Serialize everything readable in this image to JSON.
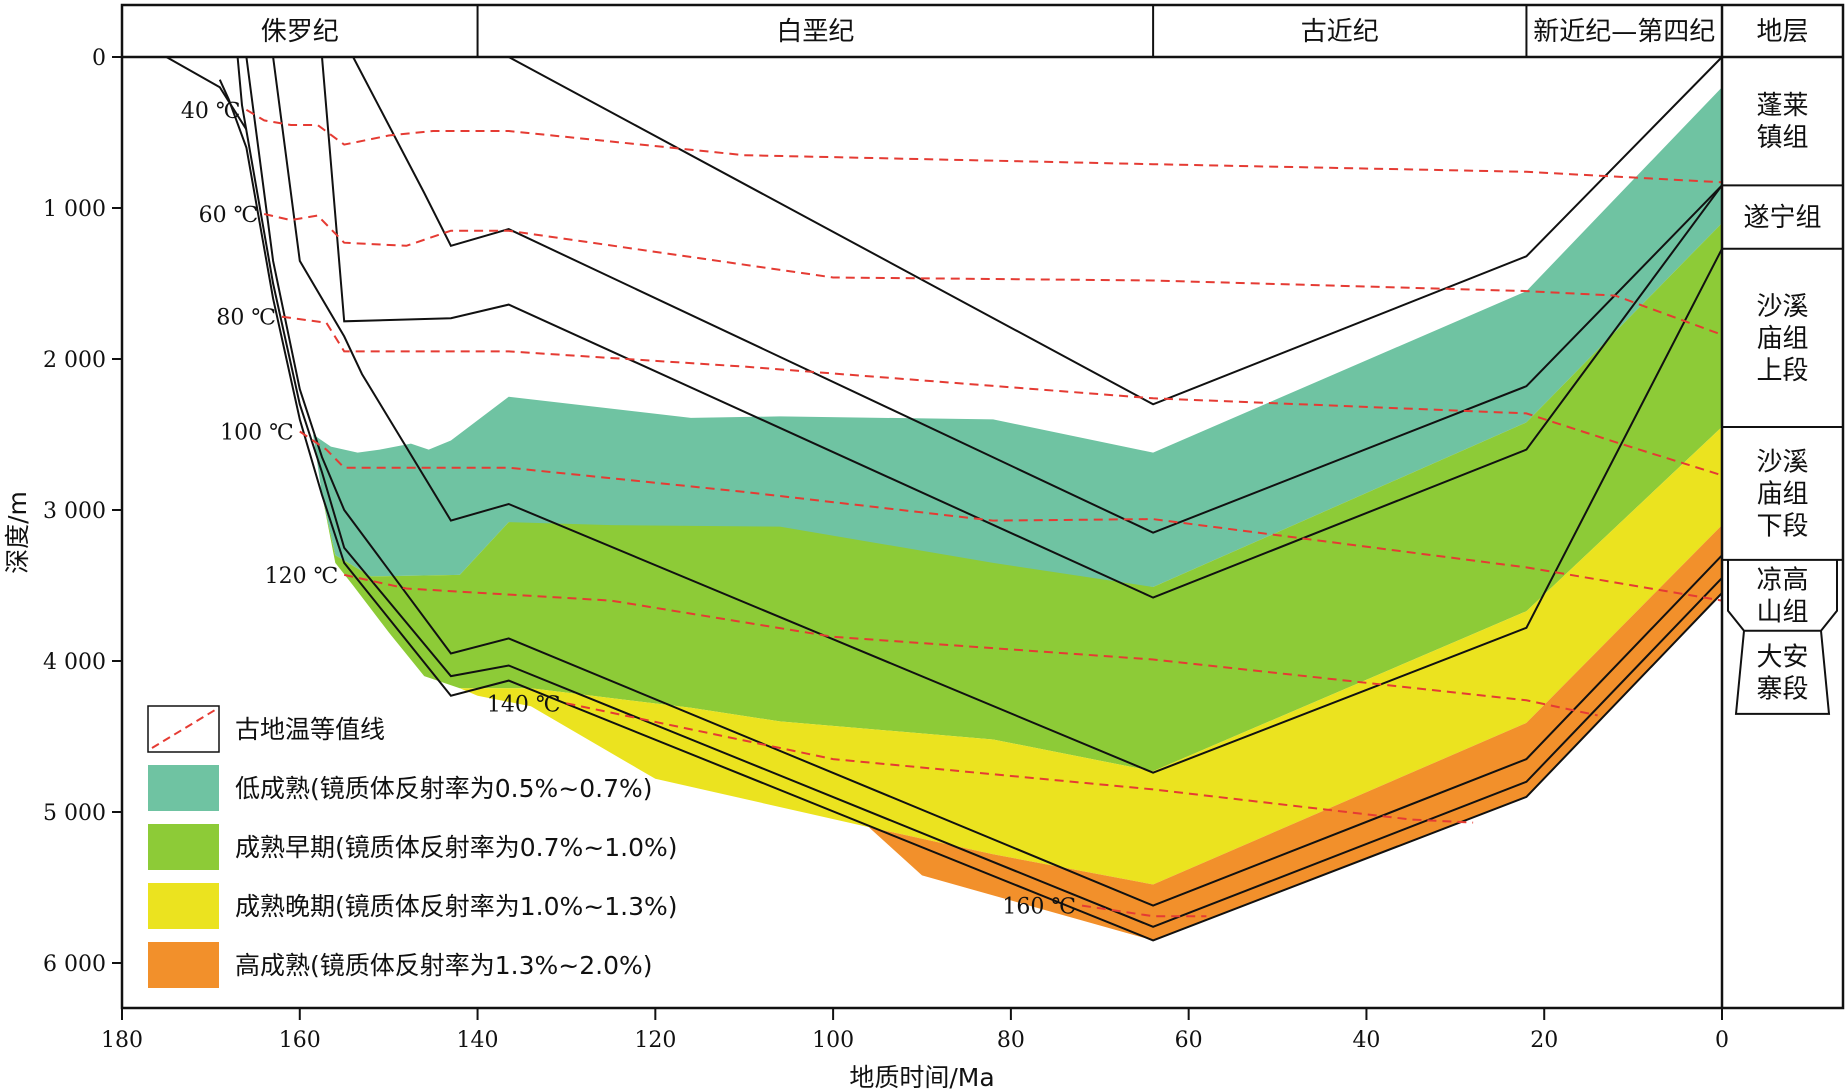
{
  "chart_data": {
    "type": "area",
    "xlabel": "地质时间/Ma",
    "ylabel": "深度/m",
    "xlim": [
      180,
      0
    ],
    "ylim": [
      0,
      6300
    ],
    "xticks": [
      {
        "value": 180,
        "label": "180"
      },
      {
        "value": 160,
        "label": "160"
      },
      {
        "value": 140,
        "label": "140"
      },
      {
        "value": 120,
        "label": "120"
      },
      {
        "value": 100,
        "label": "100"
      },
      {
        "value": 80,
        "label": "80"
      },
      {
        "value": 60,
        "label": "60"
      },
      {
        "value": 40,
        "label": "40"
      },
      {
        "value": 20,
        "label": "20"
      },
      {
        "value": 0,
        "label": "0"
      }
    ],
    "yticks": [
      {
        "value": 0,
        "label": "0"
      },
      {
        "value": 1000,
        "label": "1 000"
      },
      {
        "value": 2000,
        "label": "2 000"
      },
      {
        "value": 3000,
        "label": "3 000"
      },
      {
        "value": 4000,
        "label": "4 000"
      },
      {
        "value": 5000,
        "label": "5 000"
      },
      {
        "value": 6000,
        "label": "6 000"
      }
    ],
    "periods": [
      {
        "label": "侏罗纪",
        "from": 180,
        "to": 140
      },
      {
        "label": "白垩纪",
        "from": 140,
        "to": 64
      },
      {
        "label": "古近纪",
        "from": 64,
        "to": 22
      },
      {
        "label": "新近纪—第四纪",
        "from": 22,
        "to": 0
      }
    ],
    "strata_header": "地层",
    "strata": [
      {
        "label": "蓬莱\n镇组",
        "top": 0,
        "bottom": 850
      },
      {
        "label": "遂宁组",
        "top": 850,
        "bottom": 1270
      },
      {
        "label": "沙溪\n庙组\n上段",
        "top": 1270,
        "bottom": 2450
      },
      {
        "label": "沙溪\n庙组\n下段",
        "top": 2450,
        "bottom": 3330
      },
      {
        "label": "凉高\n山组",
        "top": 3330,
        "bottom": 3800
      },
      {
        "label": "大安\n寨段",
        "top": 3800,
        "bottom": 4350
      }
    ],
    "zones": [
      {
        "name": "低成熟(镜质体反射率为0.5%~0.7%)",
        "color": "#6fc3a2",
        "polygon": [
          [
            158.5,
            2500
          ],
          [
            156.5,
            2580
          ],
          [
            153.5,
            2620
          ],
          [
            151,
            2600
          ],
          [
            147.5,
            2560
          ],
          [
            145.5,
            2600
          ],
          [
            143,
            2540
          ],
          [
            136.5,
            2250
          ],
          [
            116,
            2390
          ],
          [
            106,
            2380
          ],
          [
            82,
            2400
          ],
          [
            64,
            2620
          ],
          [
            22,
            1550
          ],
          [
            0,
            200
          ],
          [
            0,
            1100
          ],
          [
            22,
            2420
          ],
          [
            64,
            3510
          ],
          [
            82,
            3440
          ],
          [
            106,
            3400
          ],
          [
            116,
            3380
          ],
          [
            125,
            3360
          ],
          [
            136.5,
            3080
          ],
          [
            142,
            3430
          ],
          [
            152,
            3440
          ],
          [
            156,
            3300
          ],
          [
            157.5,
            2900
          ]
        ]
      },
      {
        "name": "成熟早期(镜质体反射率为0.7%~1.0%)",
        "color": "#8dcb37",
        "polygon": [
          [
            157.5,
            2900
          ],
          [
            156,
            3300
          ],
          [
            152,
            3440
          ],
          [
            142,
            3430
          ],
          [
            136.5,
            3080
          ],
          [
            125,
            3100
          ],
          [
            106,
            3110
          ],
          [
            82,
            3350
          ],
          [
            64,
            3510
          ],
          [
            22,
            2420
          ],
          [
            0,
            1100
          ],
          [
            0,
            2450
          ],
          [
            22,
            3670
          ],
          [
            64,
            4730
          ],
          [
            82,
            4520
          ],
          [
            106,
            4400
          ],
          [
            116,
            4310
          ],
          [
            134,
            4180
          ],
          [
            142,
            4180
          ],
          [
            146,
            4100
          ],
          [
            150,
            3810
          ],
          [
            154,
            3500
          ],
          [
            156,
            3350
          ]
        ]
      },
      {
        "name": "成熟晚期(镜质体反射率为1.0%~1.3%)",
        "color": "#ebe31f",
        "polygon": [
          [
            142,
            4180
          ],
          [
            134,
            4180
          ],
          [
            116,
            4310
          ],
          [
            106,
            4400
          ],
          [
            82,
            4520
          ],
          [
            64,
            4730
          ],
          [
            22,
            3670
          ],
          [
            0,
            2450
          ],
          [
            0,
            3100
          ],
          [
            22,
            4410
          ],
          [
            64,
            5480
          ],
          [
            82,
            5280
          ],
          [
            96,
            5100
          ],
          [
            120,
            4780
          ],
          [
            134,
            4300
          ],
          [
            140,
            4230
          ]
        ]
      },
      {
        "name": "高成熟(镜质体反射率为1.3%~2.0%)",
        "color": "#f2902b",
        "polygon": [
          [
            96,
            5100
          ],
          [
            82,
            5280
          ],
          [
            64,
            5480
          ],
          [
            22,
            4410
          ],
          [
            0,
            3100
          ],
          [
            0,
            3550
          ],
          [
            22,
            4900
          ],
          [
            64,
            5850
          ],
          [
            90,
            5420
          ]
        ]
      }
    ],
    "burial_lines": [
      [
        [
          169,
          150
        ],
        [
          168,
          280
        ],
        [
          166,
          600
        ],
        [
          163,
          1600
        ],
        [
          160,
          2400
        ],
        [
          157.5,
          2900
        ],
        [
          155,
          3350
        ],
        [
          143,
          4230
        ],
        [
          136.5,
          4130
        ],
        [
          64,
          5850
        ],
        [
          22,
          4900
        ],
        [
          0,
          3550
        ]
      ],
      [
        [
          167,
          0
        ],
        [
          166.5,
          320
        ],
        [
          163,
          1500
        ],
        [
          160,
          2300
        ],
        [
          157.5,
          2750
        ],
        [
          155,
          3250
        ],
        [
          143,
          4100
        ],
        [
          136.5,
          4030
        ],
        [
          64,
          5760
        ],
        [
          22,
          4800
        ],
        [
          0,
          3450
        ]
      ],
      [
        [
          166,
          0
        ],
        [
          163,
          1350
        ],
        [
          160,
          2200
        ],
        [
          157.5,
          2650
        ],
        [
          155,
          3000
        ],
        [
          143,
          3950
        ],
        [
          136.5,
          3850
        ],
        [
          64,
          5620
        ],
        [
          22,
          4650
        ],
        [
          0,
          3300
        ]
      ],
      [
        [
          163,
          0
        ],
        [
          160,
          1350
        ],
        [
          155,
          1850
        ],
        [
          153,
          2100
        ],
        [
          143,
          3070
        ],
        [
          136.5,
          2960
        ],
        [
          64,
          4740
        ],
        [
          22,
          3780
        ],
        [
          0,
          1270
        ]
      ],
      [
        [
          157.5,
          0
        ],
        [
          155,
          1750
        ],
        [
          143,
          1730
        ],
        [
          136.5,
          1640
        ],
        [
          64,
          3580
        ],
        [
          22,
          2600
        ],
        [
          0,
          850
        ]
      ],
      [
        [
          154,
          0
        ],
        [
          146,
          900
        ],
        [
          143,
          1250
        ],
        [
          136.5,
          1140
        ],
        [
          64,
          3150
        ],
        [
          22,
          2180
        ],
        [
          0,
          850
        ]
      ],
      [
        [
          175,
          0
        ],
        [
          169,
          200
        ],
        [
          166,
          480
        ]
      ],
      [
        [
          136.5,
          0
        ],
        [
          64,
          2300
        ],
        [
          22,
          1320
        ],
        [
          0,
          0
        ]
      ]
    ],
    "isotherms": [
      {
        "label": "40 ℃",
        "points": [
          [
            166,
            350
          ],
          [
            164,
            420
          ],
          [
            161,
            450
          ],
          [
            158,
            450
          ],
          [
            155,
            580
          ],
          [
            150,
            520
          ],
          [
            145,
            490
          ],
          [
            136.5,
            490
          ],
          [
            110,
            650
          ],
          [
            64,
            710
          ],
          [
            22,
            760
          ],
          [
            0,
            830
          ]
        ]
      },
      {
        "label": "60 ℃",
        "points": [
          [
            164,
            1040
          ],
          [
            161,
            1080
          ],
          [
            158,
            1050
          ],
          [
            155,
            1230
          ],
          [
            148,
            1250
          ],
          [
            143,
            1150
          ],
          [
            136.5,
            1150
          ],
          [
            100,
            1460
          ],
          [
            64,
            1480
          ],
          [
            22,
            1550
          ],
          [
            12,
            1580
          ],
          [
            0,
            1840
          ]
        ]
      },
      {
        "label": "80 ℃",
        "points": [
          [
            162,
            1720
          ],
          [
            157,
            1760
          ],
          [
            155,
            1950
          ],
          [
            136.5,
            1950
          ],
          [
            110,
            2050
          ],
          [
            64,
            2260
          ],
          [
            22,
            2360
          ],
          [
            12,
            2550
          ],
          [
            0,
            2770
          ]
        ]
      },
      {
        "label": "100 ℃",
        "points": [
          [
            160,
            2480
          ],
          [
            157,
            2600
          ],
          [
            155,
            2720
          ],
          [
            136.5,
            2720
          ],
          [
            110,
            2880
          ],
          [
            82,
            3070
          ],
          [
            64,
            3060
          ],
          [
            22,
            3380
          ],
          [
            0,
            3600
          ]
        ]
      },
      {
        "label": "120 ℃",
        "points": [
          [
            155,
            3430
          ],
          [
            148,
            3520
          ],
          [
            125,
            3600
          ],
          [
            100,
            3840
          ],
          [
            64,
            3990
          ],
          [
            22,
            4260
          ],
          [
            14,
            4360
          ]
        ]
      },
      {
        "label": "140 ℃",
        "points": [
          [
            130,
            4280
          ],
          [
            100,
            4650
          ],
          [
            64,
            4850
          ],
          [
            35,
            5050
          ],
          [
            28,
            5070
          ]
        ]
      },
      {
        "label": "160 ℃",
        "points": [
          [
            72,
            5620
          ],
          [
            64,
            5690
          ],
          [
            58,
            5690
          ]
        ]
      }
    ],
    "isotherm_color": "#e53b33",
    "legend": {
      "position": "bottom-left",
      "entries": [
        {
          "label": "古地温等值线",
          "type": "dashed-line",
          "color": "#e53b33"
        },
        {
          "label": "低成熟(镜质体反射率为0.5%~0.7%)",
          "type": "fill",
          "color": "#6fc3a2"
        },
        {
          "label": "成熟早期(镜质体反射率为0.7%~1.0%)",
          "type": "fill",
          "color": "#8dcb37"
        },
        {
          "label": "成熟晚期(镜质体反射率为1.0%~1.3%)",
          "type": "fill",
          "color": "#ebe31f"
        },
        {
          "label": "高成熟(镜质体反射率为1.3%~2.0%)",
          "type": "fill",
          "color": "#f2902b"
        }
      ]
    },
    "grid": false
  }
}
